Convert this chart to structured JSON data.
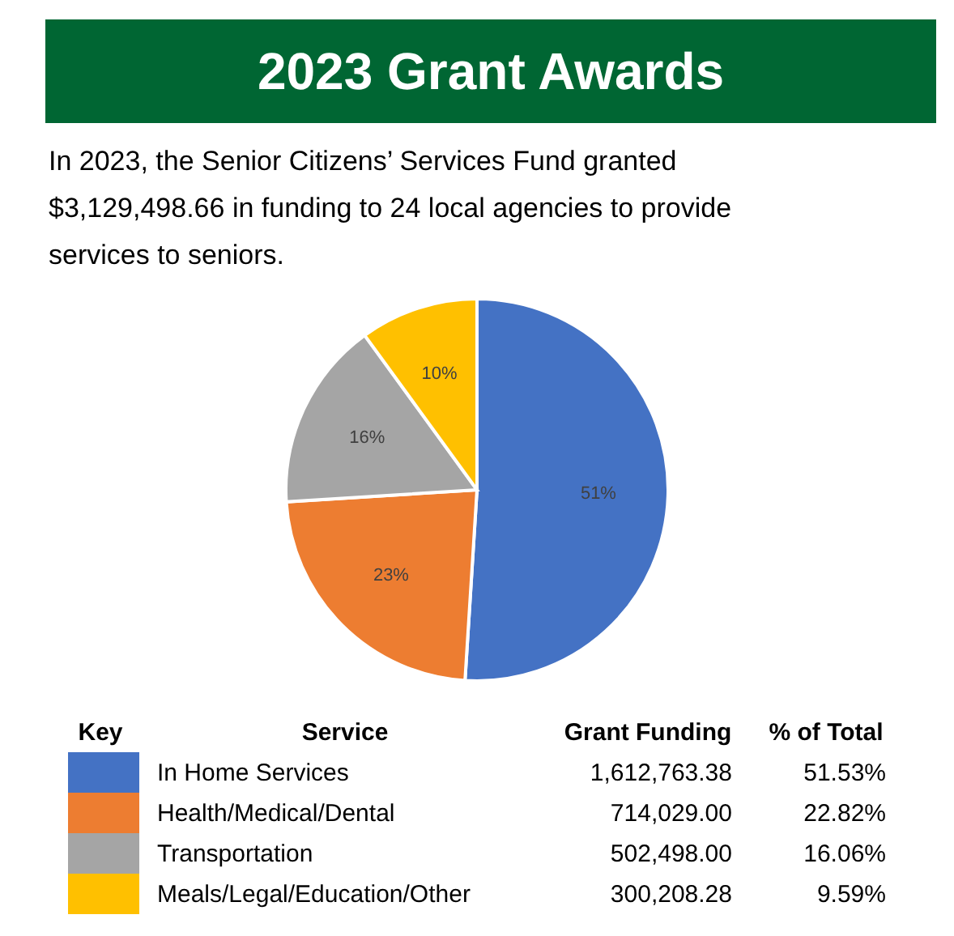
{
  "chart_data": {
    "type": "pie",
    "title": "2023 Grant Awards",
    "subtitle": "In 2023, the Senior Citizens’ Services Fund granted $3,129,498.66 in funding to 24 local agencies to provide services to seniors.",
    "categories": [
      "In Home Services",
      "Health/Medical/Dental",
      "Transportation",
      "Meals/Legal/Education/Other"
    ],
    "values": [
      51,
      23,
      16,
      10
    ],
    "colors": [
      "#4472c4",
      "#ed7d31",
      "#a5a5a5",
      "#ffc000"
    ],
    "value_labels": [
      "51%",
      "23%",
      "16%",
      "10%"
    ],
    "legend": "bottom",
    "legend_title": "Key",
    "annotations": [
      "Service",
      "Grant Funding",
      "% of Total",
      "1,612,763.38",
      "714,029.00",
      "502,498.00",
      "300,208.28",
      "51.53%",
      "22.82%",
      "16.06%",
      "9.59%"
    ]
  }
}
